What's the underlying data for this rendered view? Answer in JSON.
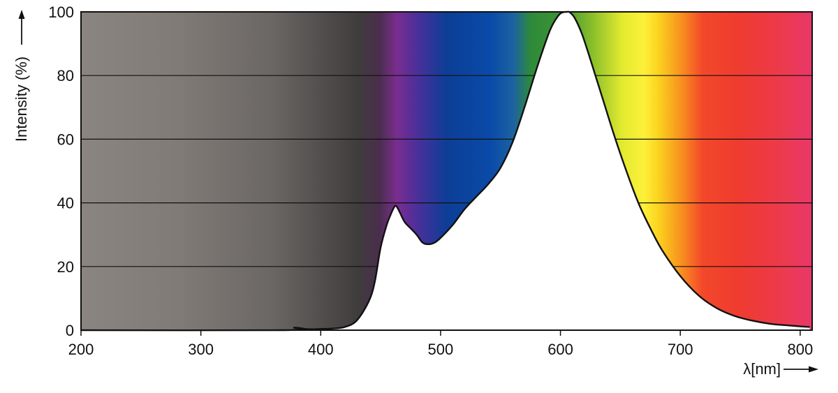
{
  "chart_data": {
    "type": "area",
    "title": "",
    "xlabel": "λ[nm]",
    "ylabel": "Intensity (%)",
    "xlim": [
      200,
      810
    ],
    "ylim": [
      0,
      100
    ],
    "x_ticks": [
      200,
      300,
      400,
      500,
      600,
      700,
      800
    ],
    "y_ticks": [
      0,
      20,
      40,
      60,
      80,
      100
    ],
    "grid": "horizontal",
    "background": "visible light spectrum gradient (UV gray to violet, blue, green, yellow, orange, red)",
    "series": [
      {
        "x": [
          200,
          370,
          378,
          390,
          400,
          410,
          420,
          430,
          440,
          445,
          450,
          455,
          458,
          461,
          463,
          466,
          470,
          475,
          480,
          485,
          490,
          495,
          500,
          510,
          520,
          530,
          540,
          550,
          560,
          570,
          580,
          590,
          595,
          600,
          605,
          608,
          612,
          618,
          625,
          635,
          645,
          655,
          665,
          675,
          685,
          700,
          715,
          730,
          745,
          760,
          775,
          790,
          800,
          808
        ],
        "y": [
          0,
          0,
          0.8,
          0.3,
          0.4,
          0.5,
          1,
          3,
          9,
          15,
          26,
          33,
          36,
          38.5,
          39,
          37,
          34,
          32,
          30,
          27.5,
          27,
          27.5,
          29,
          33,
          38,
          42,
          46,
          51,
          59,
          70,
          82,
          93,
          97,
          99.5,
          100,
          99.8,
          98,
          93,
          85,
          73,
          61,
          50,
          40,
          32,
          25,
          17,
          11,
          7,
          4.5,
          3,
          2,
          1.5,
          1.2,
          1
        ]
      }
    ]
  }
}
